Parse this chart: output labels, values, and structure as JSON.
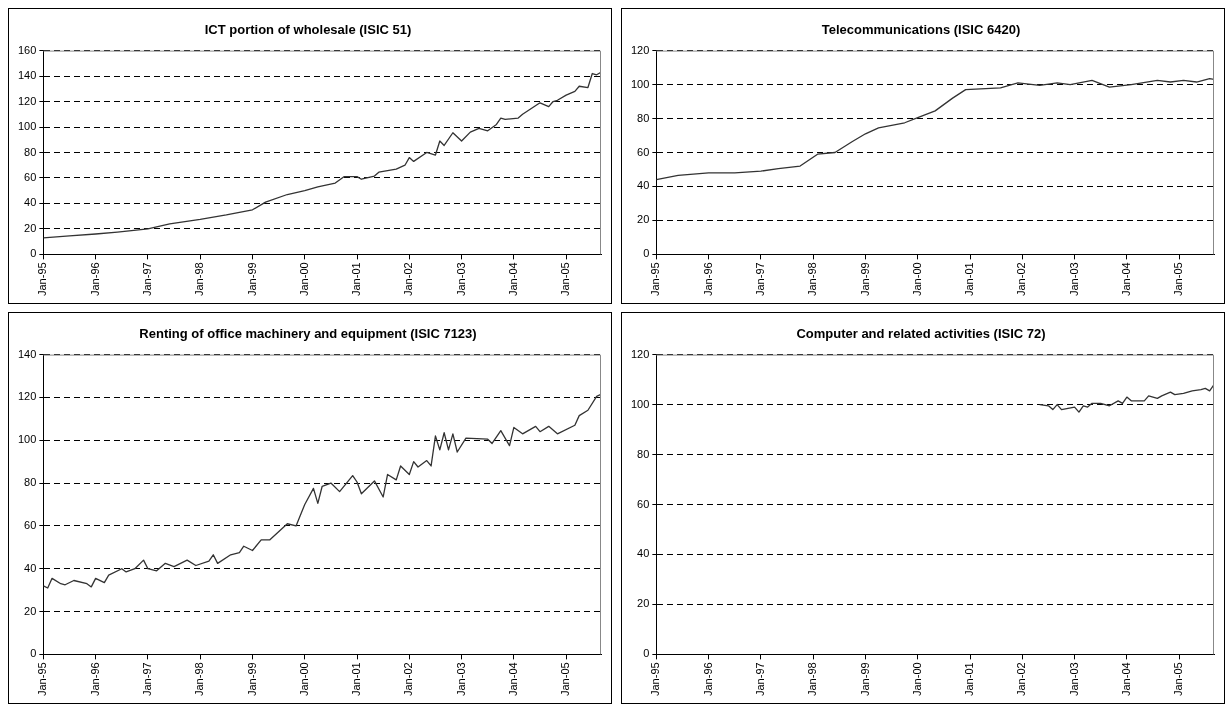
{
  "chart_data": [
    {
      "type": "line",
      "title": "ICT portion of wholesale (ISIC 51)",
      "color": "#333333",
      "grid": "y",
      "x": [
        "1995-01",
        "1995-07",
        "1996-01",
        "1996-06",
        "1997-01",
        "1997-06",
        "1998-01",
        "1998-07",
        "1999-01",
        "1999-04",
        "1999-09",
        "2000-01",
        "2000-04",
        "2000-08",
        "2000-10",
        "2001-01",
        "2001-02",
        "2001-05",
        "2001-06",
        "2001-10",
        "2001-12",
        "2002-01",
        "2002-02",
        "2002-05",
        "2002-07",
        "2002-08",
        "2002-09",
        "2002-11",
        "2003-01",
        "2003-03",
        "2003-05",
        "2003-07",
        "2003-09",
        "2003-10",
        "2003-11",
        "2004-02",
        "2004-03",
        "2004-07",
        "2004-09",
        "2004-10",
        "2004-11",
        "2005-01",
        "2005-03",
        "2005-04",
        "2005-06",
        "2005-07",
        "2005-08",
        "2005-09"
      ],
      "values": [
        13,
        14.5,
        16,
        17.5,
        20,
        24,
        27.5,
        31,
        35,
        41,
        47,
        50,
        53,
        56,
        61,
        61,
        59,
        61.5,
        64.5,
        67,
        70,
        76,
        73,
        80,
        78,
        89,
        85.5,
        95.5,
        89,
        96,
        99,
        97,
        102,
        107,
        106,
        107,
        110,
        119,
        116,
        120,
        121,
        125,
        128,
        132,
        131,
        142,
        141,
        143
      ],
      "xlim": [
        "1995-01",
        "2005-09"
      ],
      "xticks": [
        {
          "value": "1995-01",
          "label": "Jan-95"
        },
        {
          "value": "1996-01",
          "label": "Jan-96"
        },
        {
          "value": "1997-01",
          "label": "Jan-97"
        },
        {
          "value": "1998-01",
          "label": "Jan-98"
        },
        {
          "value": "1999-01",
          "label": "Jan-99"
        },
        {
          "value": "2000-01",
          "label": "Jan-00"
        },
        {
          "value": "2001-01",
          "label": "Jan-01"
        },
        {
          "value": "2002-01",
          "label": "Jan-02"
        },
        {
          "value": "2003-01",
          "label": "Jan-03"
        },
        {
          "value": "2004-01",
          "label": "Jan-04"
        },
        {
          "value": "2005-01",
          "label": "Jan-05"
        }
      ],
      "ylim": [
        0,
        160
      ],
      "yticks": [
        0,
        20,
        40,
        60,
        80,
        100,
        120,
        140,
        160
      ]
    },
    {
      "type": "line",
      "title": "Telecommunications (ISIC 6420)",
      "color": "#333333",
      "grid": "y",
      "x": [
        "1995-01",
        "1995-06",
        "1996-01",
        "1996-07",
        "1997-01",
        "1997-05",
        "1997-10",
        "1998-02",
        "1998-06",
        "1998-10",
        "1999-01",
        "1999-04",
        "1999-10",
        "2000-01",
        "2000-05",
        "2000-09",
        "2000-12",
        "2001-08",
        "2001-12",
        "2002-05",
        "2002-09",
        "2002-12",
        "2003-05",
        "2003-09",
        "2004-02",
        "2004-08",
        "2004-11",
        "2005-02",
        "2005-05",
        "2005-08",
        "2005-09"
      ],
      "values": [
        44,
        46.5,
        48,
        48,
        49,
        50.5,
        52,
        59,
        60,
        66.5,
        71,
        74.5,
        77.5,
        80.5,
        84.5,
        92,
        97,
        98,
        101,
        99.5,
        101,
        100,
        102.5,
        98.5,
        100,
        102.5,
        101.5,
        102.5,
        101.5,
        103.5,
        103
      ],
      "xlim": [
        "1995-01",
        "2005-09"
      ],
      "xticks": [
        {
          "value": "1995-01",
          "label": "Jan-95"
        },
        {
          "value": "1996-01",
          "label": "Jan-96"
        },
        {
          "value": "1997-01",
          "label": "Jan-97"
        },
        {
          "value": "1998-01",
          "label": "Jan-98"
        },
        {
          "value": "1999-01",
          "label": "Jan-99"
        },
        {
          "value": "2000-01",
          "label": "Jan-00"
        },
        {
          "value": "2001-01",
          "label": "Jan-01"
        },
        {
          "value": "2002-01",
          "label": "Jan-02"
        },
        {
          "value": "2003-01",
          "label": "Jan-03"
        },
        {
          "value": "2004-01",
          "label": "Jan-04"
        },
        {
          "value": "2005-01",
          "label": "Jan-05"
        }
      ],
      "ylim": [
        0,
        120
      ],
      "yticks": [
        0,
        20,
        40,
        60,
        80,
        100,
        120
      ]
    },
    {
      "type": "line",
      "title": "Renting of office machinery and equipment (ISIC 7123)",
      "color": "#333333",
      "grid": "y",
      "x": [
        "1995-01",
        "1995-02",
        "1995-03",
        "1995-05",
        "1995-06",
        "1995-08",
        "1995-11",
        "1995-12",
        "1996-01",
        "1996-03",
        "1996-04",
        "1996-07",
        "1996-08",
        "1996-10",
        "1996-12",
        "1997-01",
        "1997-03",
        "1997-05",
        "1997-07",
        "1997-10",
        "1997-12",
        "1998-03",
        "1998-04",
        "1998-05",
        "1998-08",
        "1998-10",
        "1998-11",
        "1999-01",
        "1999-03",
        "1999-05",
        "1999-09",
        "1999-11",
        "2000-01",
        "2000-03",
        "2000-04",
        "2000-05",
        "2000-07",
        "2000-09",
        "2000-12",
        "2001-01",
        "2001-02",
        "2001-05",
        "2001-07",
        "2001-08",
        "2001-10",
        "2001-11",
        "2002-01",
        "2002-02",
        "2002-03",
        "2002-05",
        "2002-06",
        "2002-07",
        "2002-08",
        "2002-09",
        "2002-10",
        "2002-11",
        "2002-12",
        "2003-02",
        "2003-07",
        "2003-08",
        "2003-10",
        "2003-12",
        "2004-01",
        "2004-03",
        "2004-06",
        "2004-07",
        "2004-09",
        "2004-11",
        "2005-03",
        "2005-04",
        "2005-06",
        "2005-08",
        "2005-09"
      ],
      "values": [
        32,
        31,
        35.5,
        33,
        32.5,
        34.5,
        33,
        31.5,
        35.5,
        33.5,
        37,
        40,
        38.5,
        40,
        44,
        40,
        39,
        42.5,
        41,
        44,
        41.5,
        43.5,
        46.5,
        42.5,
        46.5,
        47.5,
        50.5,
        48.5,
        53.5,
        53.5,
        61,
        60,
        70,
        77.5,
        70.5,
        78.5,
        80,
        76,
        83.5,
        80.5,
        75,
        81,
        73.5,
        84,
        81.5,
        88,
        84,
        90,
        87.5,
        90.5,
        88,
        102,
        95.5,
        103.5,
        95.5,
        103,
        94.5,
        101,
        100.5,
        98.5,
        104.5,
        97.5,
        106,
        103,
        106.5,
        104,
        106.5,
        103,
        107,
        111.5,
        114,
        120.5,
        121.5
      ],
      "xlim": [
        "1995-01",
        "2005-09"
      ],
      "xticks": [
        {
          "value": "1995-01",
          "label": "Jan-95"
        },
        {
          "value": "1996-01",
          "label": "Jan-96"
        },
        {
          "value": "1997-01",
          "label": "Jan-97"
        },
        {
          "value": "1998-01",
          "label": "Jan-98"
        },
        {
          "value": "1999-01",
          "label": "Jan-99"
        },
        {
          "value": "2000-01",
          "label": "Jan-00"
        },
        {
          "value": "2001-01",
          "label": "Jan-01"
        },
        {
          "value": "2002-01",
          "label": "Jan-02"
        },
        {
          "value": "2003-01",
          "label": "Jan-03"
        },
        {
          "value": "2004-01",
          "label": "Jan-04"
        },
        {
          "value": "2005-01",
          "label": "Jan-05"
        }
      ],
      "ylim": [
        0,
        140
      ],
      "yticks": [
        0,
        20,
        40,
        60,
        80,
        100,
        120,
        140
      ]
    },
    {
      "type": "line",
      "title": "Computer and related activities (ISIC 72)",
      "color": "#333333",
      "grid": "y",
      "x": [
        "2002-05",
        "2002-07",
        "2002-08",
        "2002-09",
        "2002-10",
        "2003-01",
        "2003-02",
        "2003-03",
        "2003-04",
        "2003-05",
        "2003-07",
        "2003-09",
        "2003-11",
        "2003-12",
        "2004-01",
        "2004-02",
        "2004-05",
        "2004-06",
        "2004-08",
        "2004-09",
        "2004-11",
        "2004-12",
        "2005-02",
        "2005-04",
        "2005-06",
        "2005-07",
        "2005-08",
        "2005-09"
      ],
      "values": [
        100,
        99.5,
        98,
        100,
        98,
        99,
        97,
        99.5,
        99,
        100.5,
        100.5,
        99.5,
        101.5,
        100.5,
        103,
        101.5,
        101.5,
        103.5,
        102.5,
        103.5,
        105,
        104,
        104.5,
        105.5,
        106,
        106.5,
        105.5,
        108
      ],
      "xlim": [
        "1995-01",
        "2005-09"
      ],
      "xticks": [
        {
          "value": "1995-01",
          "label": "Jan-95"
        },
        {
          "value": "1996-01",
          "label": "Jan-96"
        },
        {
          "value": "1997-01",
          "label": "Jan-97"
        },
        {
          "value": "1998-01",
          "label": "Jan-98"
        },
        {
          "value": "1999-01",
          "label": "Jan-99"
        },
        {
          "value": "2000-01",
          "label": "Jan-00"
        },
        {
          "value": "2001-01",
          "label": "Jan-01"
        },
        {
          "value": "2002-01",
          "label": "Jan-02"
        },
        {
          "value": "2003-01",
          "label": "Jan-03"
        },
        {
          "value": "2004-01",
          "label": "Jan-04"
        },
        {
          "value": "2005-01",
          "label": "Jan-05"
        }
      ],
      "ylim": [
        0,
        120
      ],
      "yticks": [
        0,
        20,
        40,
        60,
        80,
        100,
        120
      ]
    }
  ]
}
